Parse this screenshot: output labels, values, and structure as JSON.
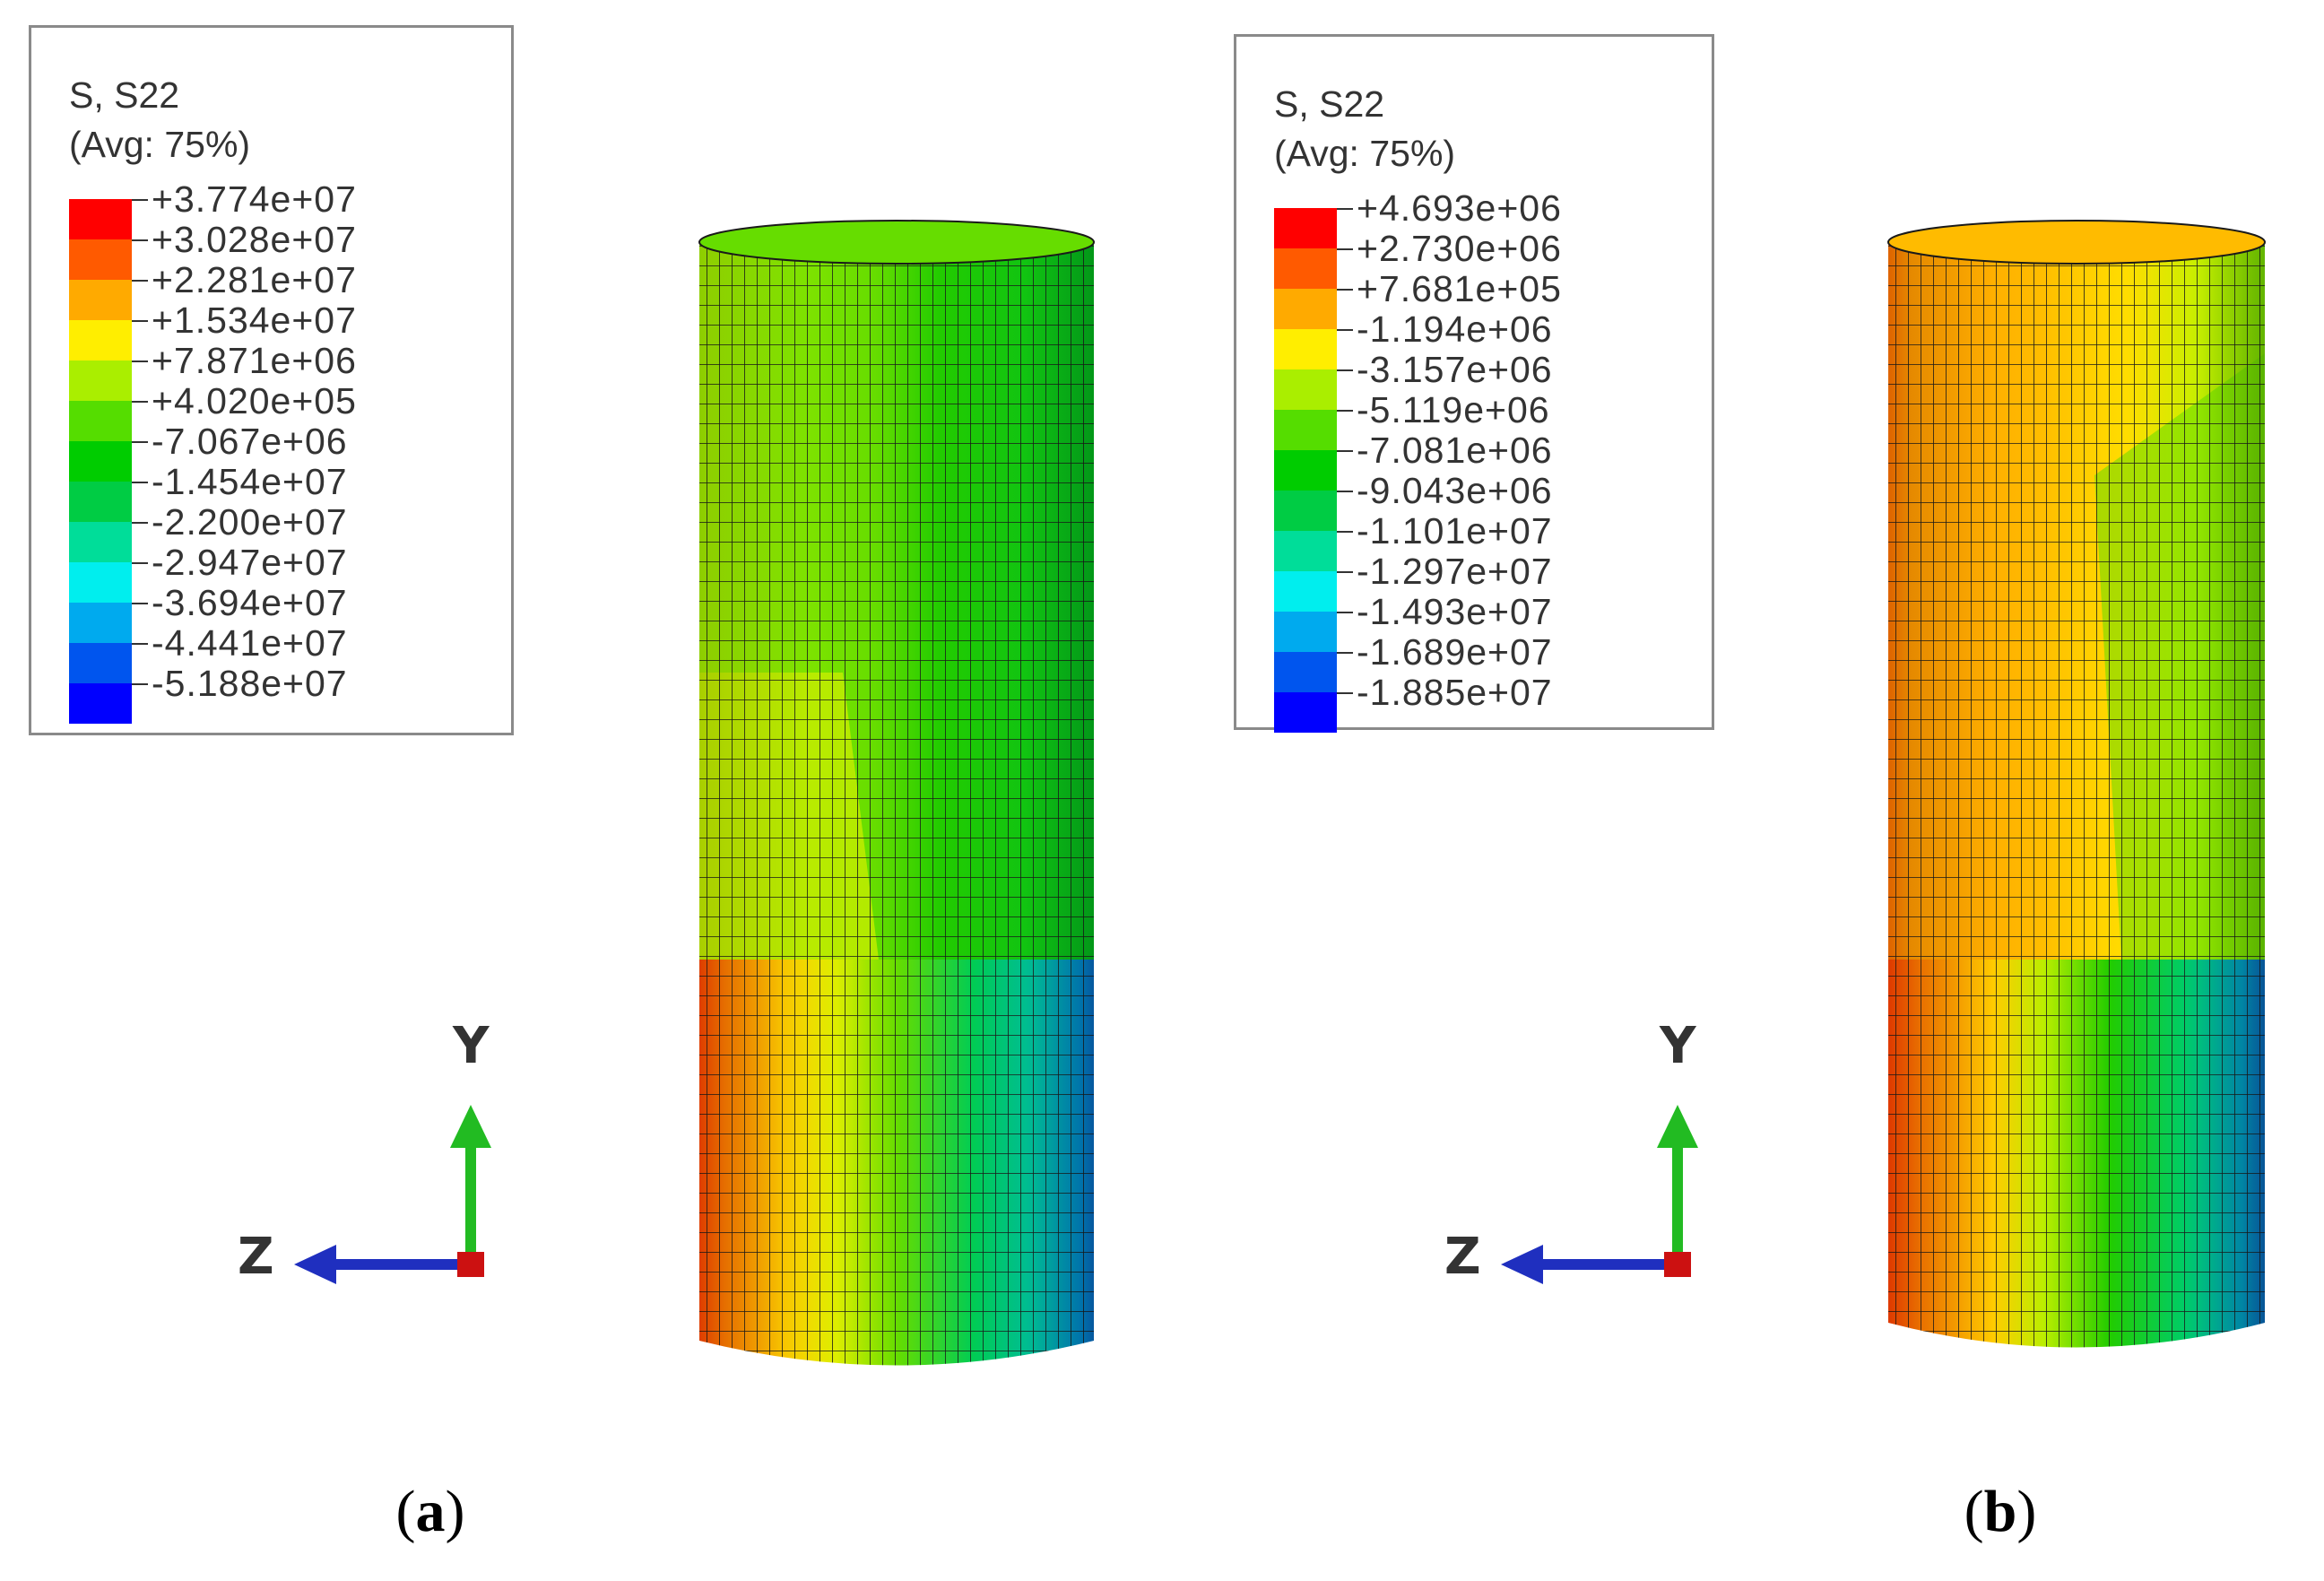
{
  "panels": [
    {
      "id": "a",
      "caption_open": "(",
      "caption_letter": "a",
      "caption_close": ")",
      "legend": {
        "title": "S, S22",
        "subtitle": "(Avg: 75%)",
        "values": [
          "+3.774e+07",
          "+3.028e+07",
          "+2.281e+07",
          "+1.534e+07",
          "+7.871e+06",
          "+4.020e+05",
          "-7.067e+06",
          "-1.454e+07",
          "-2.200e+07",
          "-2.947e+07",
          "-3.694e+07",
          "-4.441e+07",
          "-5.188e+07"
        ]
      },
      "triad": {
        "up": "Y",
        "left": "Z"
      }
    },
    {
      "id": "b",
      "caption_open": "(",
      "caption_letter": "b",
      "caption_close": ")",
      "legend": {
        "title": "S, S22",
        "subtitle": "(Avg: 75%)",
        "values": [
          "+4.693e+06",
          "+2.730e+06",
          "+7.681e+05",
          "-1.194e+06",
          "-3.157e+06",
          "-5.119e+06",
          "-7.081e+06",
          "-9.043e+06",
          "-1.101e+07",
          "-1.297e+07",
          "-1.493e+07",
          "-1.689e+07",
          "-1.885e+07"
        ]
      },
      "triad": {
        "up": "Y",
        "left": "Z"
      }
    }
  ],
  "colors": {
    "contour_bands": [
      "#ff0000",
      "#ff5a00",
      "#ffaa00",
      "#ffee00",
      "#aaee00",
      "#55dd00",
      "#00cc00",
      "#00cc44",
      "#00dd99",
      "#00eeee",
      "#00aaee",
      "#0055ee",
      "#0000ff"
    ],
    "mesh_line": "#1a1a1a",
    "axis_y": "#22bb22",
    "axis_z": "#1f2fbf",
    "axis_x": "#cc1111"
  }
}
